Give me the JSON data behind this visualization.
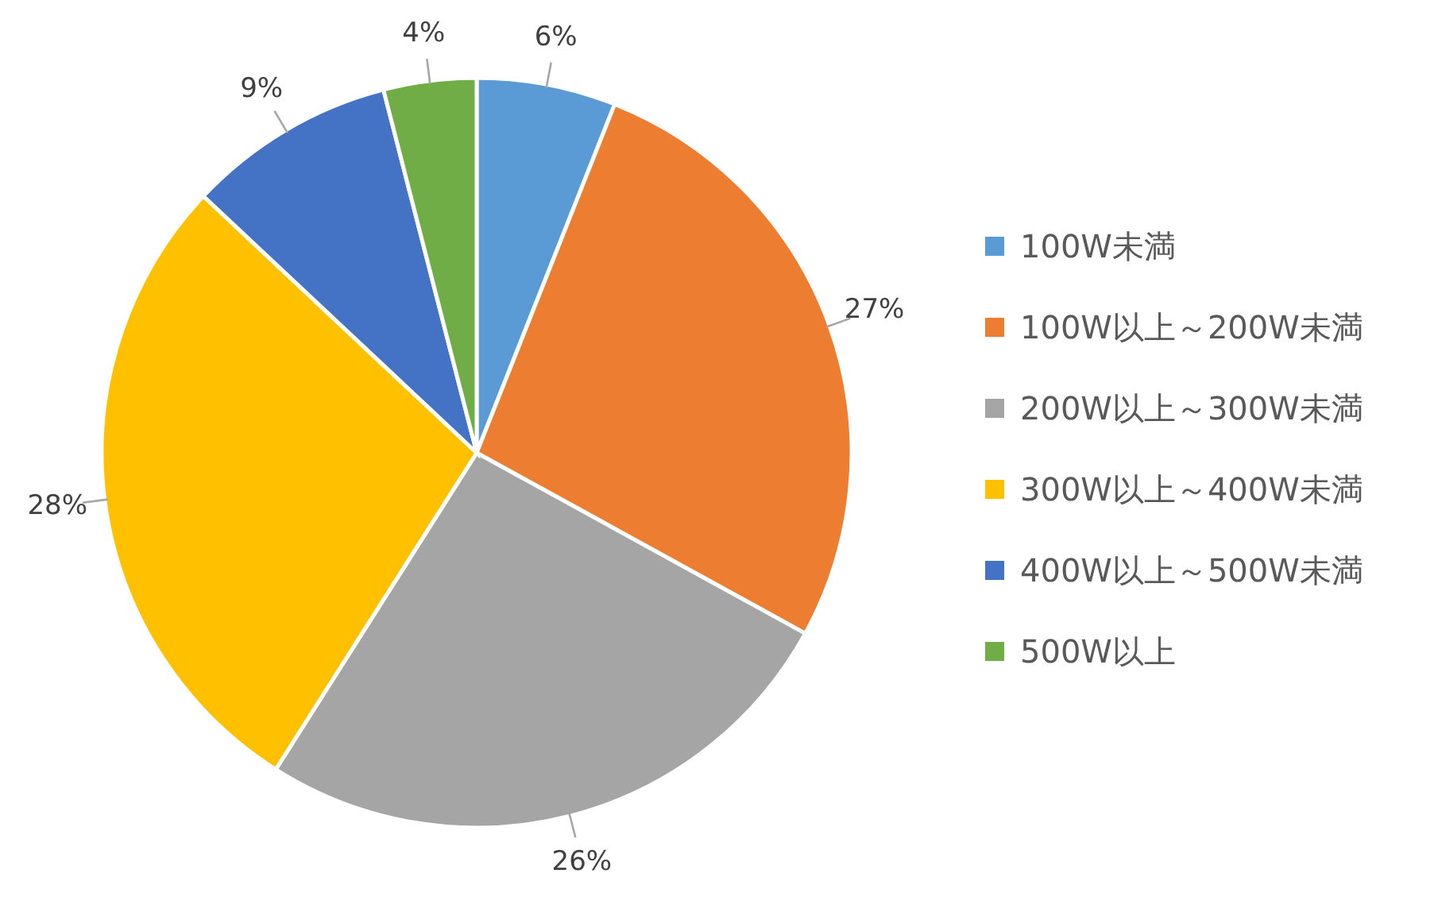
{
  "chart_data": {
    "type": "pie",
    "categories": [
      "100W未満",
      "100W以上～200W未満",
      "200W以上～300W未満",
      "300W以上～400W未満",
      "400W以上～500W未満",
      "500W以上"
    ],
    "values": [
      6,
      27,
      26,
      28,
      9,
      4
    ],
    "colors": [
      "#5b9bd5",
      "#ed7d31",
      "#a5a5a5",
      "#ffc000",
      "#4472c4",
      "#70ad47"
    ],
    "value_labels": [
      "6%",
      "27%",
      "26%",
      "28%",
      "9%",
      "4%"
    ],
    "legend": "right"
  }
}
